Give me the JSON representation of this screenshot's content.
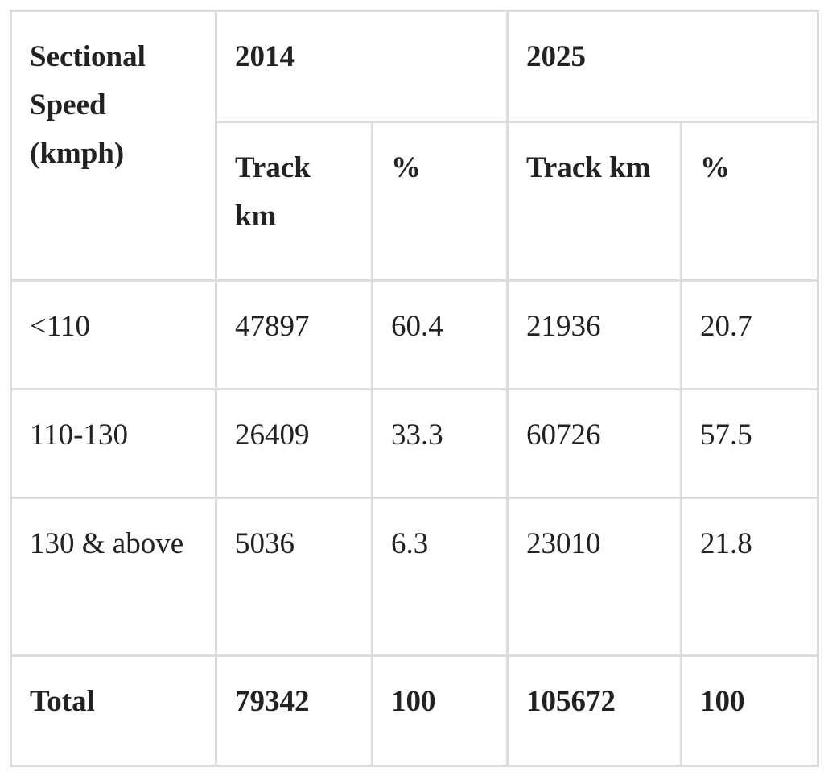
{
  "table": {
    "header": {
      "speed": "Sectional Speed (kmph)",
      "years": [
        "2014",
        "2025"
      ],
      "sub": [
        "Track km",
        "%",
        "Track km",
        "%"
      ]
    },
    "rows": [
      [
        "<110",
        "47897",
        "60.4",
        "21936",
        "20.7"
      ],
      [
        "110-130",
        "26409",
        "33.3",
        "60726",
        "57.5"
      ],
      [
        "130 & above",
        "5036",
        "6.3",
        "23010",
        "21.8"
      ],
      [
        "Total",
        "79342",
        "100",
        "105672",
        "100"
      ]
    ]
  }
}
